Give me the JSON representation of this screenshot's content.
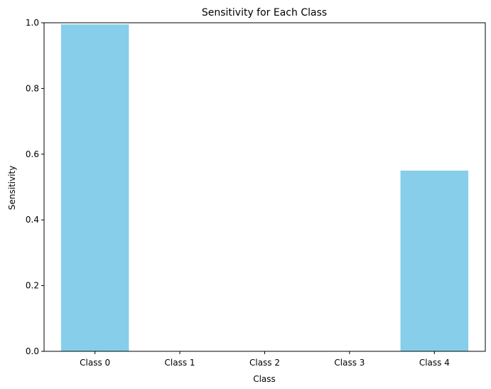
{
  "chart_data": {
    "type": "bar",
    "title": "Sensitivity for Each Class",
    "xlabel": "Class",
    "ylabel": "Sensitivity",
    "categories": [
      "Class 0",
      "Class 1",
      "Class 2",
      "Class 3",
      "Class 4"
    ],
    "values": [
      0.995,
      0.0,
      0.0,
      0.0,
      0.55
    ],
    "ylim": [
      0,
      1.0
    ],
    "yticks": [
      "0.0",
      "0.2",
      "0.4",
      "0.6",
      "0.8",
      "1.0"
    ],
    "grid": false,
    "bar_color": "#87CEEB",
    "axis_color": "#000000"
  }
}
